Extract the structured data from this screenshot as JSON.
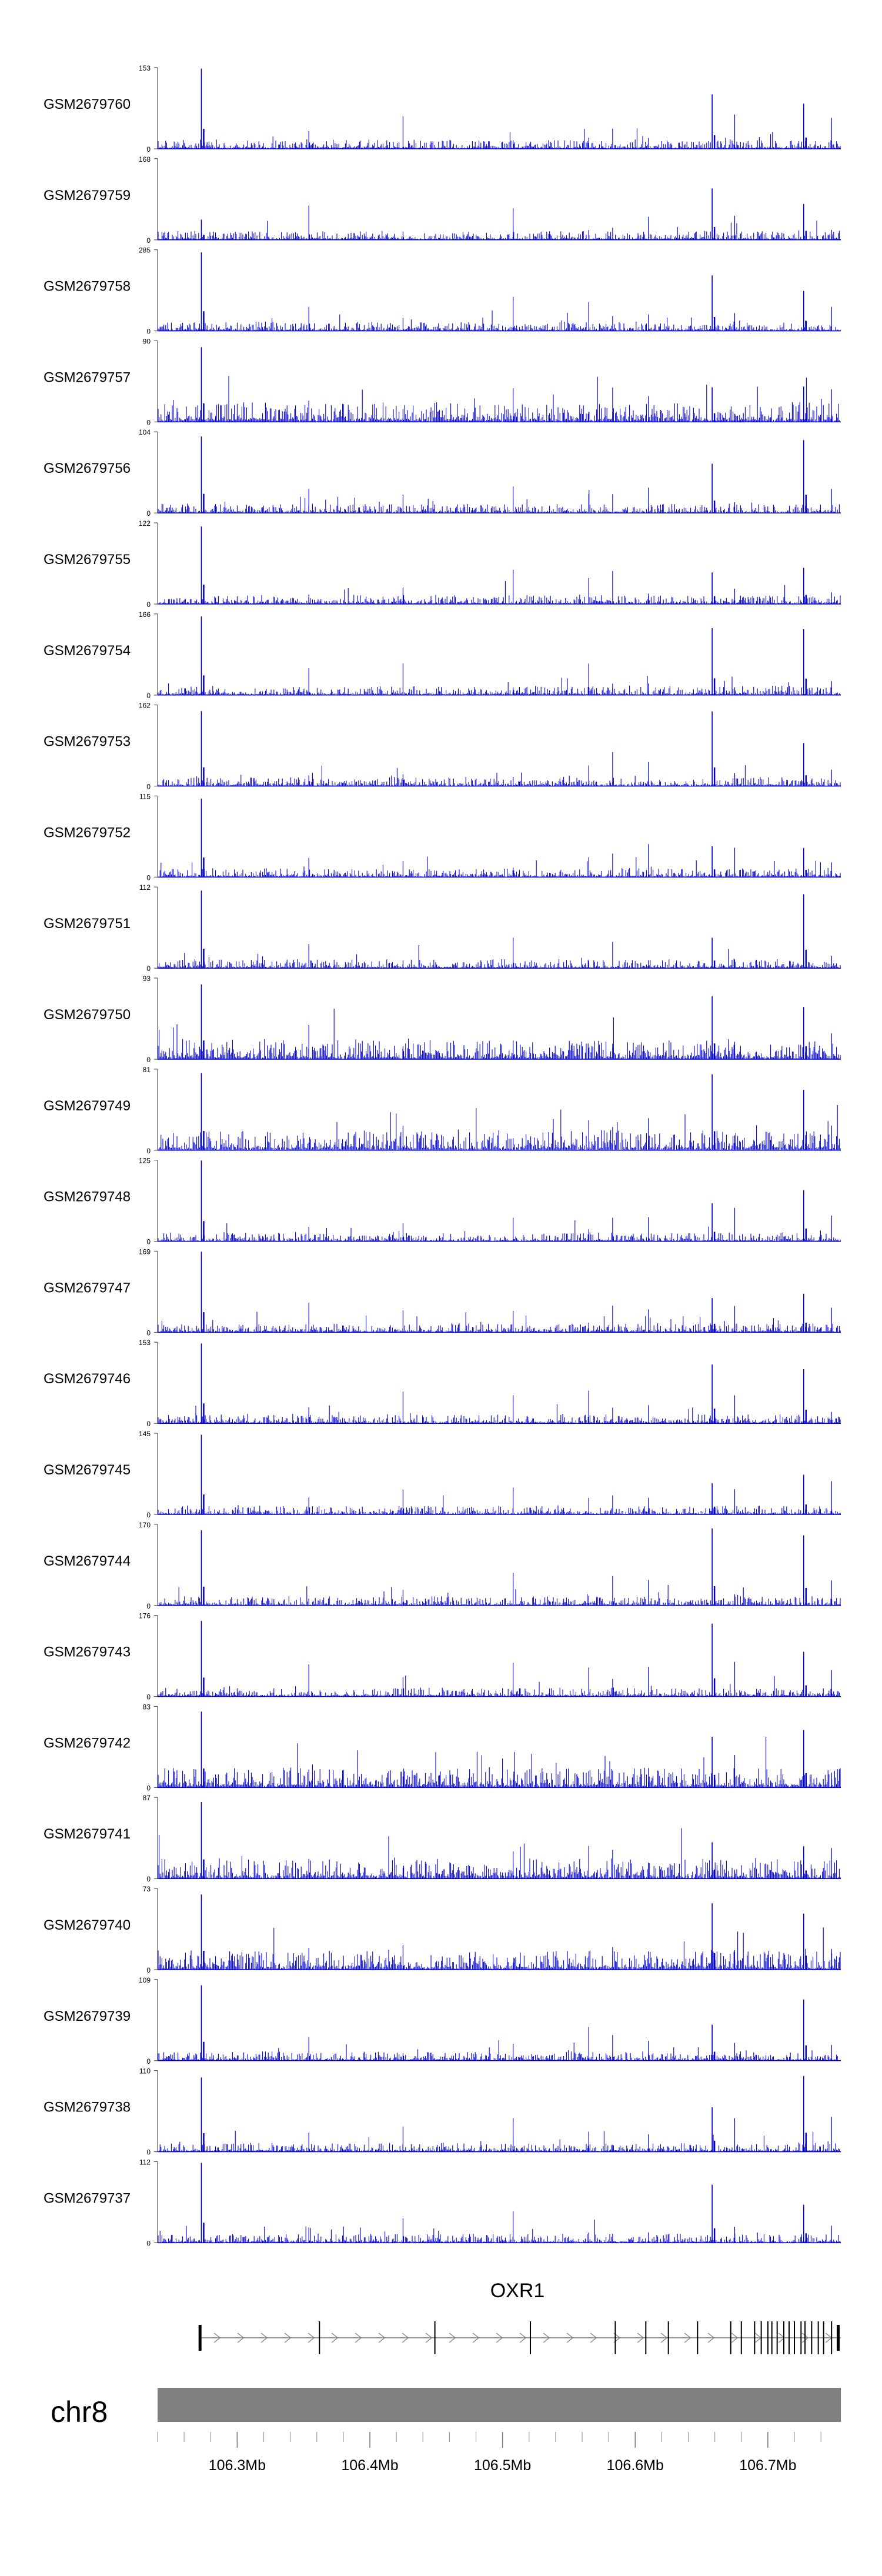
{
  "chart_data": {
    "type": "area",
    "title": "",
    "chromosome": "chr8",
    "x_range_mb": [
      106.24,
      106.755
    ],
    "color": "#0000cc",
    "signal_peaks_mb": {
      "dominant": [
        106.273,
        106.658,
        106.727
      ],
      "secondary": [
        106.583,
        106.565,
        106.675,
        106.425,
        106.508,
        106.354,
        106.61,
        106.748
      ]
    },
    "tracks": [
      {
        "name": "GSM2679760",
        "ymax": "153",
        "ymin": "0"
      },
      {
        "name": "GSM2679759",
        "ymax": "168",
        "ymin": "0"
      },
      {
        "name": "GSM2679758",
        "ymax": "285",
        "ymin": "0"
      },
      {
        "name": "GSM2679757",
        "ymax": "90",
        "ymin": "0"
      },
      {
        "name": "GSM2679756",
        "ymax": "104",
        "ymin": "0"
      },
      {
        "name": "GSM2679755",
        "ymax": "122",
        "ymin": "0"
      },
      {
        "name": "GSM2679754",
        "ymax": "166",
        "ymin": "0"
      },
      {
        "name": "GSM2679753",
        "ymax": "162",
        "ymin": "0"
      },
      {
        "name": "GSM2679752",
        "ymax": "115",
        "ymin": "0"
      },
      {
        "name": "GSM2679751",
        "ymax": "112",
        "ymin": "0"
      },
      {
        "name": "GSM2679750",
        "ymax": "93",
        "ymin": "0"
      },
      {
        "name": "GSM2679749",
        "ymax": "81",
        "ymin": "0"
      },
      {
        "name": "GSM2679748",
        "ymax": "125",
        "ymin": "0"
      },
      {
        "name": "GSM2679747",
        "ymax": "169",
        "ymin": "0"
      },
      {
        "name": "GSM2679746",
        "ymax": "153",
        "ymin": "0"
      },
      {
        "name": "GSM2679745",
        "ymax": "145",
        "ymin": "0"
      },
      {
        "name": "GSM2679744",
        "ymax": "170",
        "ymin": "0"
      },
      {
        "name": "GSM2679743",
        "ymax": "176",
        "ymin": "0"
      },
      {
        "name": "GSM2679742",
        "ymax": "83",
        "ymin": "0"
      },
      {
        "name": "GSM2679741",
        "ymax": "87",
        "ymin": "0"
      },
      {
        "name": "GSM2679740",
        "ymax": "73",
        "ymin": "0"
      },
      {
        "name": "GSM2679739",
        "ymax": "109",
        "ymin": "0"
      },
      {
        "name": "GSM2679738",
        "ymax": "110",
        "ymin": "0"
      },
      {
        "name": "GSM2679737",
        "ymax": "112",
        "ymin": "0"
      }
    ],
    "gene": {
      "name": "OXR1",
      "strand": "+",
      "start_mb": 106.272,
      "end_mb": 106.755,
      "exons_mb": [
        106.272,
        106.362,
        106.449,
        106.521,
        106.585,
        106.608,
        106.625,
        106.647,
        106.672,
        106.68,
        106.69,
        106.695,
        106.7,
        106.703,
        106.707,
        106.712,
        106.716,
        106.72,
        106.725,
        106.728,
        106.733,
        106.738,
        106.742,
        106.748,
        106.753
      ]
    },
    "axis": {
      "ticks_mb": [
        106.3,
        106.4,
        106.5,
        106.6,
        106.7
      ],
      "tick_labels": [
        "106.3Mb",
        "106.4Mb",
        "106.5Mb",
        "106.6Mb",
        "106.7Mb"
      ],
      "minor_step_mb": 0.02
    }
  }
}
